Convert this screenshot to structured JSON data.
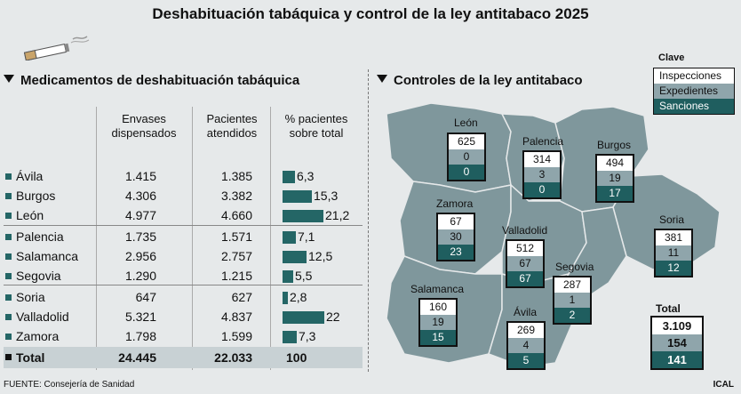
{
  "title": "Deshabituación tabáquica y control de la ley antitabaco 2025",
  "left_section_title": "Medicamentos de deshabituación tabáquica",
  "right_section_title": "Controles de la ley antitabaco",
  "table": {
    "headers": {
      "envases": "Envases\ndispensados",
      "pacientes": "Pacientes\natendidos",
      "porcentaje": "% pacientes\nsobre total"
    },
    "rows": [
      {
        "name": "Ávila",
        "envases": "1.415",
        "pacientes": "1.385",
        "pct": 6.3,
        "pct_label": "6,3"
      },
      {
        "name": "Burgos",
        "envases": "4.306",
        "pacientes": "3.382",
        "pct": 15.3,
        "pct_label": "15,3"
      },
      {
        "name": "León",
        "envases": "4.977",
        "pacientes": "4.660",
        "pct": 21.2,
        "pct_label": "21,2"
      },
      {
        "name": "Palencia",
        "envases": "1.735",
        "pacientes": "1.571",
        "pct": 7.1,
        "pct_label": "7,1"
      },
      {
        "name": "Salamanca",
        "envases": "2.956",
        "pacientes": "2.757",
        "pct": 12.5,
        "pct_label": "12,5"
      },
      {
        "name": "Segovia",
        "envases": "1.290",
        "pacientes": "1.215",
        "pct": 5.5,
        "pct_label": "5,5"
      },
      {
        "name": "Soria",
        "envases": "647",
        "pacientes": "627",
        "pct": 2.8,
        "pct_label": "2,8"
      },
      {
        "name": "Valladolid",
        "envases": "5.321",
        "pacientes": "4.837",
        "pct": 22,
        "pct_label": "22"
      },
      {
        "name": "Zamora",
        "envases": "1.798",
        "pacientes": "1.599",
        "pct": 7.3,
        "pct_label": "7,3"
      }
    ],
    "total": {
      "name": "Total",
      "envases": "24.445",
      "pacientes": "22.033",
      "pct": "100"
    }
  },
  "legend": {
    "title": "Clave",
    "items": [
      "Inspecciones",
      "Expedientes",
      "Sanciones"
    ]
  },
  "map": {
    "provinces": [
      {
        "id": "leon",
        "name": "León",
        "inspecciones": "625",
        "expedientes": "0",
        "sanciones": "0"
      },
      {
        "id": "palencia",
        "name": "Palencia",
        "inspecciones": "314",
        "expedientes": "3",
        "sanciones": "0"
      },
      {
        "id": "burgos",
        "name": "Burgos",
        "inspecciones": "494",
        "expedientes": "19",
        "sanciones": "17"
      },
      {
        "id": "zamora",
        "name": "Zamora",
        "inspecciones": "67",
        "expedientes": "30",
        "sanciones": "23"
      },
      {
        "id": "valladolid",
        "name": "Valladolid",
        "inspecciones": "512",
        "expedientes": "67",
        "sanciones": "67"
      },
      {
        "id": "soria",
        "name": "Soria",
        "inspecciones": "381",
        "expedientes": "11",
        "sanciones": "12"
      },
      {
        "id": "segovia",
        "name": "Segovia",
        "inspecciones": "287",
        "expedientes": "1",
        "sanciones": "2"
      },
      {
        "id": "salamanca",
        "name": "Salamanca",
        "inspecciones": "160",
        "expedientes": "19",
        "sanciones": "15"
      },
      {
        "id": "avila",
        "name": "Ávila",
        "inspecciones": "269",
        "expedientes": "4",
        "sanciones": "5"
      }
    ],
    "total": {
      "label": "Total",
      "inspecciones": "3.109",
      "expedientes": "154",
      "sanciones": "141"
    }
  },
  "colors": {
    "accent": "#246666",
    "map_fill": "#7f979c",
    "expedientes": "#8fa5ab",
    "sanciones": "#1f5e5f"
  },
  "source": "FUENTE: Consejería de Sanidad",
  "brand": "ICAL"
}
